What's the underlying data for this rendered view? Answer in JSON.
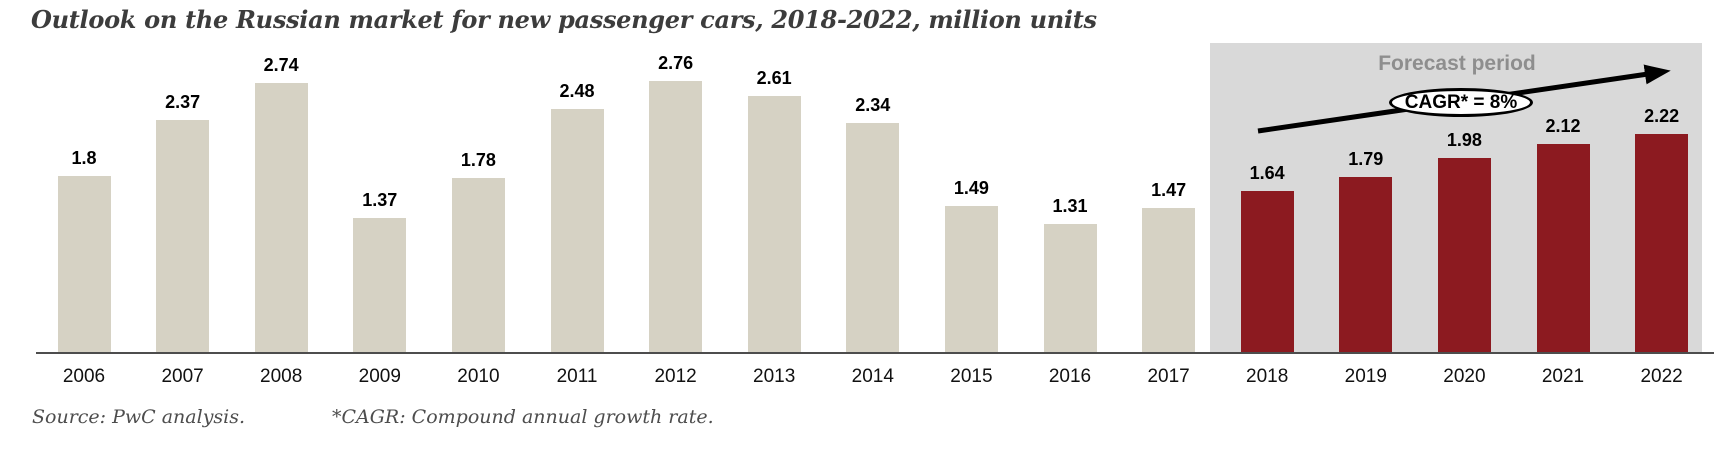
{
  "title": "Outlook on the Russian market for new passenger cars, 2018-2022, million units",
  "forecast": {
    "label": "Forecast period",
    "cagr_label": "CAGR* = 8%"
  },
  "footer": {
    "source": "Source: PwC analysis.",
    "cagr_note": "*CAGR: Compound annual growth rate."
  },
  "colors": {
    "historical_bar": "#d6d2c4",
    "forecast_bar": "#8c1a20",
    "forecast_bg": "#d9d9d9",
    "axis": "#4d4d4d",
    "title_text": "#3c3c3c",
    "forecast_label_text": "#8e8e8e",
    "value_label_text": "#000000",
    "year_label_text": "#111111",
    "source_text": "#4d4d4d",
    "arrow": "#000000"
  },
  "chart_data": {
    "type": "bar",
    "title": "Outlook on the Russian market for new passenger cars, 2018-2022, million units",
    "unit": "million units",
    "categories": [
      "2006",
      "2007",
      "2008",
      "2009",
      "2010",
      "2011",
      "2012",
      "2013",
      "2014",
      "2015",
      "2016",
      "2017",
      "2018",
      "2019",
      "2020",
      "2021",
      "2022"
    ],
    "values": [
      1.8,
      2.37,
      2.74,
      1.37,
      1.78,
      2.48,
      2.76,
      2.61,
      2.34,
      1.49,
      1.31,
      1.47,
      1.64,
      1.79,
      1.98,
      2.12,
      2.22
    ],
    "labels": [
      "1.8",
      "2.37",
      "2.74",
      "1.37",
      "1.78",
      "2.48",
      "2.76",
      "2.61",
      "2.34",
      "1.49",
      "1.31",
      "1.47",
      "1.64",
      "1.79",
      "1.98",
      "2.12",
      "2.22"
    ],
    "forecast_start_index": 12,
    "forecast_region_label": "Forecast period",
    "annotation": "CAGR* = 8%",
    "xlabel": "",
    "ylabel": "",
    "ylim": [
      0,
      3.2
    ],
    "grid": false,
    "legend": false,
    "value_labels_shown": true
  }
}
